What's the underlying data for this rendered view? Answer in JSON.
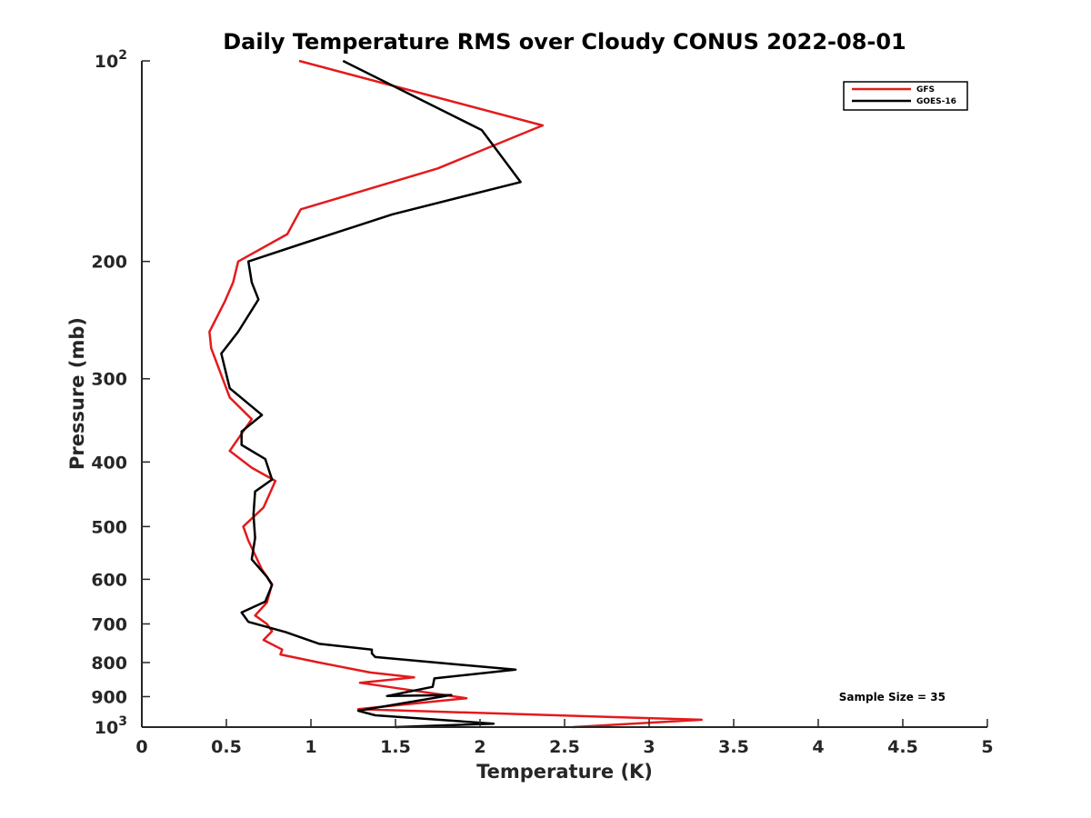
{
  "chart_data": {
    "type": "line",
    "title": "Daily Temperature RMS over Cloudy CONUS 2022-08-01",
    "xlabel": "Temperature (K)",
    "ylabel": "Pressure (mb)",
    "xlim": [
      0,
      5
    ],
    "ylim": [
      100,
      1000
    ],
    "y_scale": "log",
    "y_reversed": true,
    "x_ticks": [
      "0",
      "0.5",
      "1",
      "1.5",
      "2",
      "2.5",
      "3",
      "3.5",
      "4",
      "4.5",
      "5"
    ],
    "x_tick_values": [
      0,
      0.5,
      1,
      1.5,
      2,
      2.5,
      3,
      3.5,
      4,
      4.5,
      5
    ],
    "y_ticks": [
      {
        "value": 100,
        "base": "10",
        "exp": "2"
      },
      {
        "value": 200,
        "label": "200"
      },
      {
        "value": 300,
        "label": "300"
      },
      {
        "value": 400,
        "label": "400"
      },
      {
        "value": 500,
        "label": "500"
      },
      {
        "value": 600,
        "label": "600"
      },
      {
        "value": 700,
        "label": "700"
      },
      {
        "value": 800,
        "label": "800"
      },
      {
        "value": 900,
        "label": "900"
      },
      {
        "value": 1000,
        "base": "10",
        "exp": "3"
      }
    ],
    "grid": false,
    "legend_position": "top-right",
    "annotation": "Sample Size = 35",
    "series": [
      {
        "name": "GFS",
        "color": "#e41a1c",
        "points": [
          [
            0.93,
            100
          ],
          [
            2.37,
            125
          ],
          [
            1.75,
            145
          ],
          [
            0.94,
            167
          ],
          [
            0.86,
            182
          ],
          [
            0.57,
            200
          ],
          [
            0.54,
            215
          ],
          [
            0.49,
            230
          ],
          [
            0.4,
            255
          ],
          [
            0.41,
            270
          ],
          [
            0.52,
            320
          ],
          [
            0.65,
            345
          ],
          [
            0.52,
            385
          ],
          [
            0.65,
            408
          ],
          [
            0.79,
            427
          ],
          [
            0.72,
            468
          ],
          [
            0.6,
            500
          ],
          [
            0.63,
            525
          ],
          [
            0.71,
            580
          ],
          [
            0.77,
            610
          ],
          [
            0.74,
            650
          ],
          [
            0.67,
            680
          ],
          [
            0.74,
            700
          ],
          [
            0.77,
            718
          ],
          [
            0.72,
            740
          ],
          [
            0.83,
            765
          ],
          [
            0.82,
            778
          ],
          [
            1.05,
            800
          ],
          [
            1.35,
            828
          ],
          [
            1.61,
            842
          ],
          [
            1.29,
            858
          ],
          [
            1.59,
            880
          ],
          [
            1.92,
            905
          ],
          [
            1.28,
            940
          ],
          [
            3.31,
            975
          ],
          [
            2.55,
            1000
          ]
        ]
      },
      {
        "name": "GOES-16",
        "color": "#000000",
        "points": [
          [
            1.19,
            100
          ],
          [
            2.01,
            127
          ],
          [
            2.24,
            152
          ],
          [
            1.48,
            170
          ],
          [
            0.95,
            188
          ],
          [
            0.63,
            200
          ],
          [
            0.65,
            215
          ],
          [
            0.69,
            228
          ],
          [
            0.57,
            255
          ],
          [
            0.47,
            275
          ],
          [
            0.52,
            310
          ],
          [
            0.71,
            340
          ],
          [
            0.59,
            360
          ],
          [
            0.59,
            377
          ],
          [
            0.73,
            396
          ],
          [
            0.77,
            425
          ],
          [
            0.67,
            443
          ],
          [
            0.66,
            480
          ],
          [
            0.67,
            520
          ],
          [
            0.65,
            560
          ],
          [
            0.74,
            595
          ],
          [
            0.77,
            612
          ],
          [
            0.73,
            648
          ],
          [
            0.59,
            673
          ],
          [
            0.63,
            695
          ],
          [
            0.85,
            720
          ],
          [
            1.05,
            750
          ],
          [
            1.36,
            765
          ],
          [
            1.36,
            775
          ],
          [
            1.38,
            785
          ],
          [
            2.21,
            820
          ],
          [
            1.73,
            845
          ],
          [
            1.72,
            870
          ],
          [
            1.45,
            898
          ],
          [
            1.83,
            895
          ],
          [
            1.28,
            945
          ],
          [
            1.38,
            960
          ],
          [
            2.08,
            988
          ],
          [
            1.5,
            1000
          ]
        ]
      }
    ]
  }
}
